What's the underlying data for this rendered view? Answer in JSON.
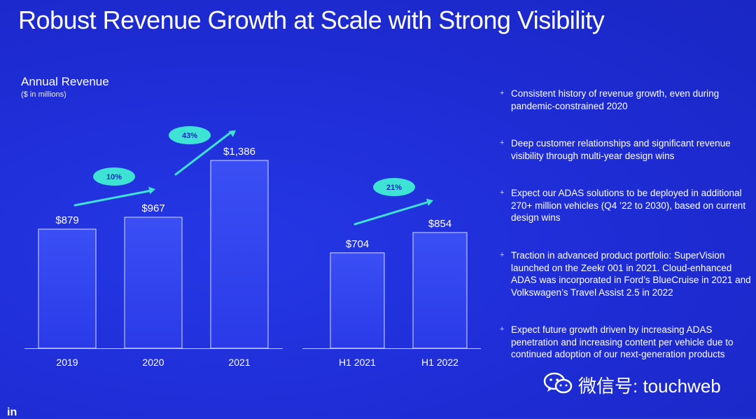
{
  "title": "Robust Revenue Growth at Scale with Strong Visibility",
  "chart_data": {
    "type": "bar",
    "title": "Annual Revenue",
    "subtitle": "($ in millions)",
    "groups": [
      {
        "categories": [
          "2019",
          "2020",
          "2021"
        ],
        "values": [
          879,
          967,
          1386
        ],
        "labels": [
          "$879",
          "$967",
          "$1,386"
        ],
        "growth": [
          "10%",
          "43%"
        ]
      },
      {
        "categories": [
          "H1 2021",
          "H1 2022"
        ],
        "values": [
          704,
          854
        ],
        "labels": [
          "$704",
          "$854"
        ],
        "growth": [
          "21%"
        ]
      }
    ],
    "ylim": [
      0,
      1386
    ],
    "colors": {
      "bar_top": "#3b4ff5",
      "bar_bottom": "#2a3ae8",
      "bar_border": "#d6dcff",
      "pill": "#3fe3d5",
      "pill_text": "#1a28c0",
      "arrow": "#3fe3d5",
      "axis": "#c9d0ff"
    }
  },
  "bullets": [
    "Consistent history of revenue growth, even during pandemic-constrained 2020",
    "Deep customer relationships and significant revenue visibility through multi-year design wins",
    "Expect our ADAS solutions to be deployed in additional 270+ million vehicles (Q4 ’22 to 2030), based on current design wins",
    "Traction in advanced product portfolio: SuperVision launched on the Zeekr 001 in 2021.  Cloud-enhanced ADAS was incorporated in Ford’s BlueCruise in 2021 and Volkswagen’s Travel Assist 2.5 in 2022",
    "Expect future growth driven by increasing ADAS penetration and increasing content per vehicle due to continued adoption of our next-generation products"
  ],
  "bullet_marker": "+",
  "watermark": {
    "icon": "wechat-icon",
    "label": "微信号: touchweb"
  },
  "logo": "in"
}
